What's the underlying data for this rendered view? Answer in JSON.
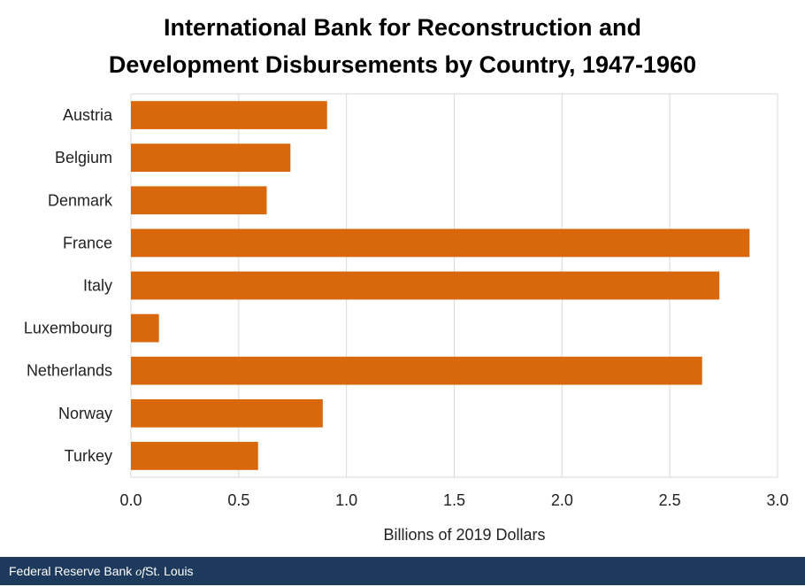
{
  "chart_data": {
    "type": "bar",
    "orientation": "horizontal",
    "title_lines": [
      "International Bank for Reconstruction and",
      "Development Disbursements by Country, 1947-1960"
    ],
    "categories": [
      "Austria",
      "Belgium",
      "Denmark",
      "France",
      "Italy",
      "Luxembourg",
      "Netherlands",
      "Norway",
      "Turkey"
    ],
    "values": [
      0.91,
      0.74,
      0.63,
      2.87,
      2.73,
      0.13,
      2.65,
      0.89,
      0.59
    ],
    "xlabel": "Billions of 2019 Dollars",
    "ylabel": "",
    "xlim": [
      0,
      3.0
    ],
    "xticks": [
      "0.0",
      "0.5",
      "1.0",
      "1.5",
      "2.0",
      "2.5",
      "3.0"
    ],
    "grid": true,
    "bar_color": "#d9680c"
  },
  "footer": {
    "source_pre": "Federal Reserve Bank ",
    "source_of": "of",
    "source_post": "St. Louis"
  },
  "colors": {
    "gridline": "#d9d9d9",
    "footer_bg": "#1d3a5c"
  }
}
